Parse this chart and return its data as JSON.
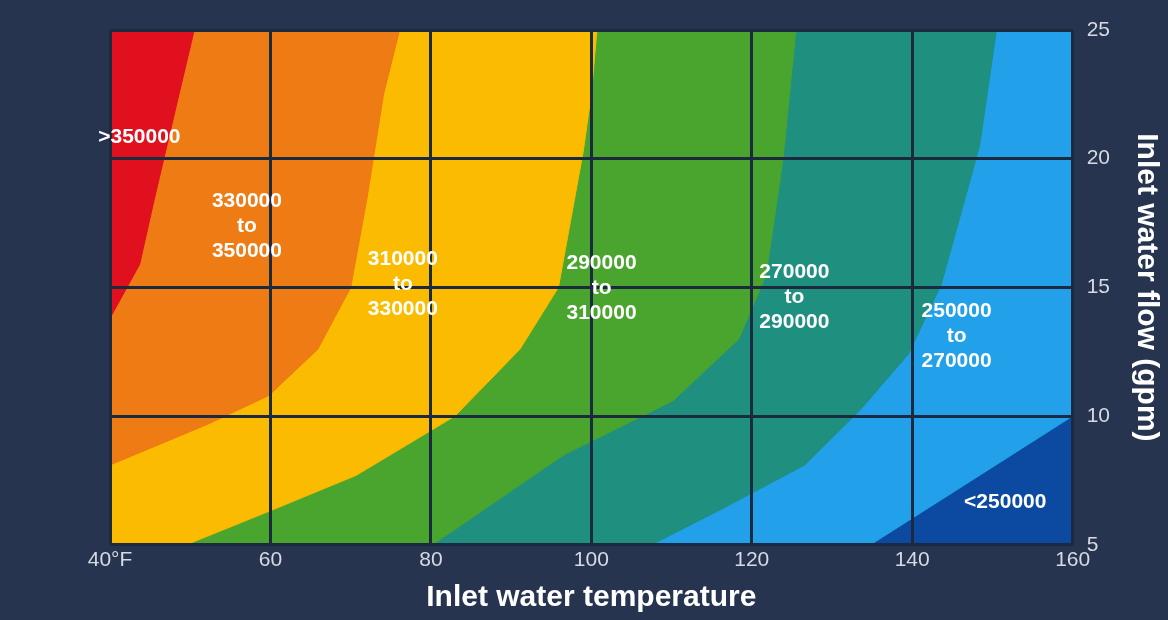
{
  "chart_data": {
    "type": "area",
    "xlabel": "Inlet water temperature",
    "ylabel": "Inlet water flow (gpm)",
    "xlim": [
      40,
      160
    ],
    "ylim": [
      5,
      25
    ],
    "xticks": [
      {
        "value": 40,
        "label": "40°F"
      },
      60,
      80,
      100,
      120,
      140,
      160
    ],
    "yticks": [
      5,
      10,
      15,
      20,
      25
    ],
    "grid": true,
    "series": [
      {
        "name": ">350000",
        "color": "#e0101e",
        "x": [
          40,
          43.7,
          45.5,
          48.6,
          50.5,
          40,
          40
        ],
        "values": [
          13.8,
          15.9,
          18.4,
          22.5,
          25,
          25,
          13.8
        ]
      },
      {
        "name": "330000 to 350000",
        "color": "#ef7b14",
        "x": [
          40,
          52.3,
          59.8,
          65.9,
          70,
          72,
          74.1,
          76.1,
          50.5,
          48.6,
          45.5,
          43.7,
          40,
          40
        ],
        "values": [
          8.1,
          9.7,
          10.8,
          12.6,
          15,
          18.4,
          22.5,
          25,
          25,
          22.5,
          18.4,
          15.9,
          13.8,
          8.1
        ]
      },
      {
        "name": "310000 to 330000",
        "color": "#fbbb00",
        "x": [
          49.5,
          59.8,
          70.7,
          83,
          91.1,
          95.9,
          99,
          100,
          100.7,
          76.1,
          74.1,
          72,
          70,
          65.9,
          59.8,
          52.3,
          40,
          40,
          49.5
        ],
        "values": [
          5,
          6.3,
          7.7,
          10,
          12.6,
          15,
          20.3,
          22.5,
          25,
          25,
          22.5,
          18.4,
          15,
          12.6,
          10.8,
          9.7,
          8.1,
          5,
          5
        ]
      },
      {
        "name": "290000 to 310000",
        "color": "#4aa52e",
        "x": [
          80.2,
          96.6,
          110.2,
          118.4,
          121.8,
          123.9,
          125.5,
          100.7,
          100,
          99,
          95.9,
          91.1,
          83,
          70.7,
          59.8,
          49.5,
          80.2
        ],
        "values": [
          5,
          8.5,
          10.6,
          13,
          15.5,
          20,
          25,
          25,
          22.5,
          20.3,
          15,
          12.6,
          10,
          7.7,
          6.3,
          5,
          5
        ]
      },
      {
        "name": "270000 to 290000",
        "color": "#1f9080",
        "x": [
          107.5,
          115.7,
          126.6,
          133.4,
          139.5,
          143.6,
          148.4,
          150.5,
          125.5,
          123.9,
          121.8,
          118.4,
          110.2,
          96.6,
          80.2,
          107.5
        ],
        "values": [
          5,
          6.3,
          8.1,
          10.2,
          12.4,
          15.1,
          20.5,
          25,
          25,
          20,
          15.5,
          13,
          10.6,
          8.5,
          5,
          5
        ]
      },
      {
        "name": "250000 to 270000",
        "color": "#22a0ea",
        "x": [
          134.8,
          160,
          160,
          150.5,
          148.4,
          143.6,
          139.5,
          133.4,
          126.6,
          115.7,
          107.5,
          134.8
        ],
        "values": [
          5,
          10,
          25,
          25,
          20.5,
          15.1,
          12.4,
          10.2,
          8.1,
          6.3,
          5,
          5
        ]
      },
      {
        "name": "<250000",
        "color": "#0b4aa0",
        "x": [
          134.8,
          160,
          160,
          134.8
        ],
        "values": [
          5,
          10,
          5,
          5
        ]
      }
    ]
  }
}
